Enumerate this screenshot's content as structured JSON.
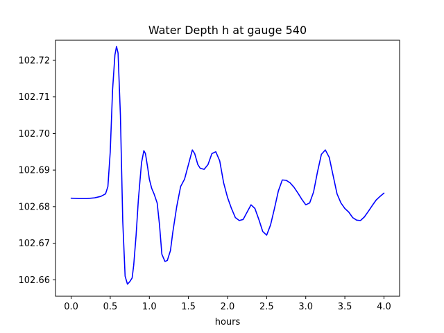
{
  "chart_data": {
    "type": "line",
    "title": "Water Depth h at gauge 540",
    "xlabel": "hours",
    "ylabel": "",
    "xlim": [
      -0.2,
      4.2
    ],
    "ylim": [
      102.6555,
      102.7255
    ],
    "xticks": [
      0.0,
      0.5,
      1.0,
      1.5,
      2.0,
      2.5,
      3.0,
      3.5,
      4.0
    ],
    "xtick_labels": [
      "0.0",
      "0.5",
      "1.0",
      "1.5",
      "2.0",
      "2.5",
      "3.0",
      "3.5",
      "4.0"
    ],
    "yticks": [
      102.66,
      102.67,
      102.68,
      102.69,
      102.7,
      102.71,
      102.72
    ],
    "ytick_labels": [
      "102.66",
      "102.67",
      "102.68",
      "102.69",
      "102.70",
      "102.71",
      "102.72"
    ],
    "grid": false,
    "series": [
      {
        "color": "#0000ff",
        "x": [
          0.0,
          0.1,
          0.2,
          0.3,
          0.38,
          0.44,
          0.47,
          0.5,
          0.53,
          0.56,
          0.58,
          0.6,
          0.63,
          0.66,
          0.69,
          0.72,
          0.75,
          0.78,
          0.8,
          0.83,
          0.86,
          0.9,
          0.93,
          0.95,
          0.98,
          1.0,
          1.03,
          1.06,
          1.1,
          1.13,
          1.16,
          1.2,
          1.23,
          1.27,
          1.3,
          1.35,
          1.4,
          1.45,
          1.5,
          1.55,
          1.58,
          1.62,
          1.65,
          1.7,
          1.75,
          1.8,
          1.85,
          1.9,
          1.95,
          2.0,
          2.05,
          2.1,
          2.15,
          2.2,
          2.25,
          2.3,
          2.35,
          2.4,
          2.45,
          2.5,
          2.55,
          2.6,
          2.65,
          2.7,
          2.75,
          2.8,
          2.85,
          2.9,
          2.95,
          3.0,
          3.05,
          3.1,
          3.15,
          3.2,
          3.25,
          3.3,
          3.35,
          3.4,
          3.45,
          3.5,
          3.55,
          3.6,
          3.65,
          3.7,
          3.75,
          3.8,
          3.85,
          3.9,
          3.95,
          4.0
        ],
        "y": [
          102.6823,
          102.6822,
          102.6822,
          102.6824,
          102.6828,
          102.6835,
          102.6855,
          102.695,
          102.712,
          102.7215,
          102.7238,
          102.722,
          102.705,
          102.676,
          102.661,
          102.6588,
          102.6595,
          102.6605,
          102.664,
          102.672,
          102.682,
          102.692,
          102.6953,
          102.6945,
          102.6905,
          102.6875,
          102.685,
          102.6835,
          102.681,
          102.675,
          102.667,
          102.665,
          102.6653,
          102.668,
          102.673,
          102.68,
          102.6855,
          102.6875,
          102.6915,
          102.6955,
          102.6945,
          102.6915,
          102.6905,
          102.6902,
          102.6915,
          102.6945,
          102.695,
          102.6925,
          102.6865,
          102.6825,
          102.6795,
          102.677,
          102.6762,
          102.6765,
          102.6785,
          102.6805,
          102.6795,
          102.6765,
          102.6732,
          102.6722,
          102.675,
          102.6795,
          102.6843,
          102.6873,
          102.6872,
          102.6865,
          102.6853,
          102.6837,
          102.682,
          102.6805,
          102.681,
          102.684,
          102.6895,
          102.6943,
          102.6955,
          102.6935,
          102.6885,
          102.6835,
          102.681,
          102.6795,
          102.6785,
          102.677,
          102.6763,
          102.6762,
          102.6772,
          102.6787,
          102.6803,
          102.6818,
          102.6828,
          102.6837
        ]
      }
    ]
  }
}
